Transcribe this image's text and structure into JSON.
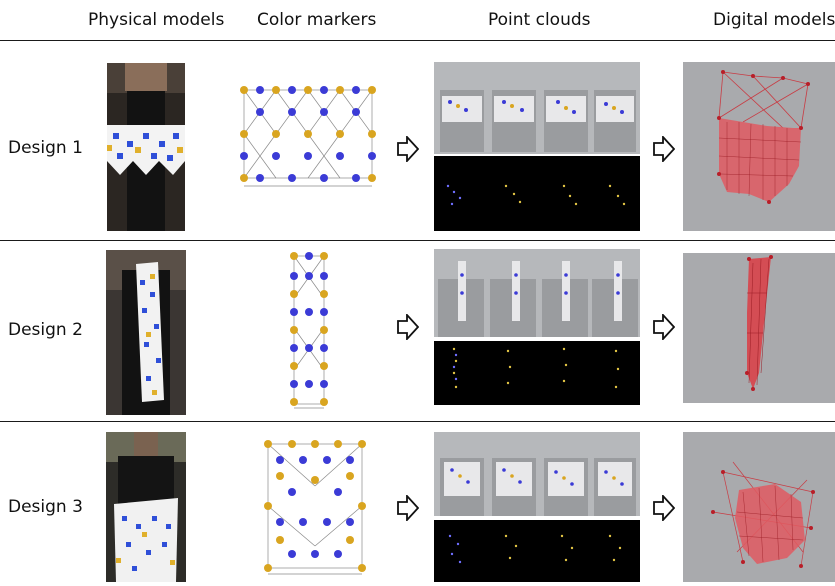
{
  "headers": {
    "physical": "Physical models",
    "color": "Color markers",
    "point": "Point clouds",
    "digital": "Digital models"
  },
  "designs": [
    {
      "label": "Design 1"
    },
    {
      "label": "Design 2"
    },
    {
      "label": "Design 3"
    }
  ],
  "colors": {
    "blue_marker": "#3b3bd6",
    "yellow_marker": "#d9a520",
    "mesh_red": "#d8434a",
    "panel_gray": "#aeb0b3",
    "black": "#000000"
  },
  "icons": [
    "right-arrow-icon"
  ]
}
